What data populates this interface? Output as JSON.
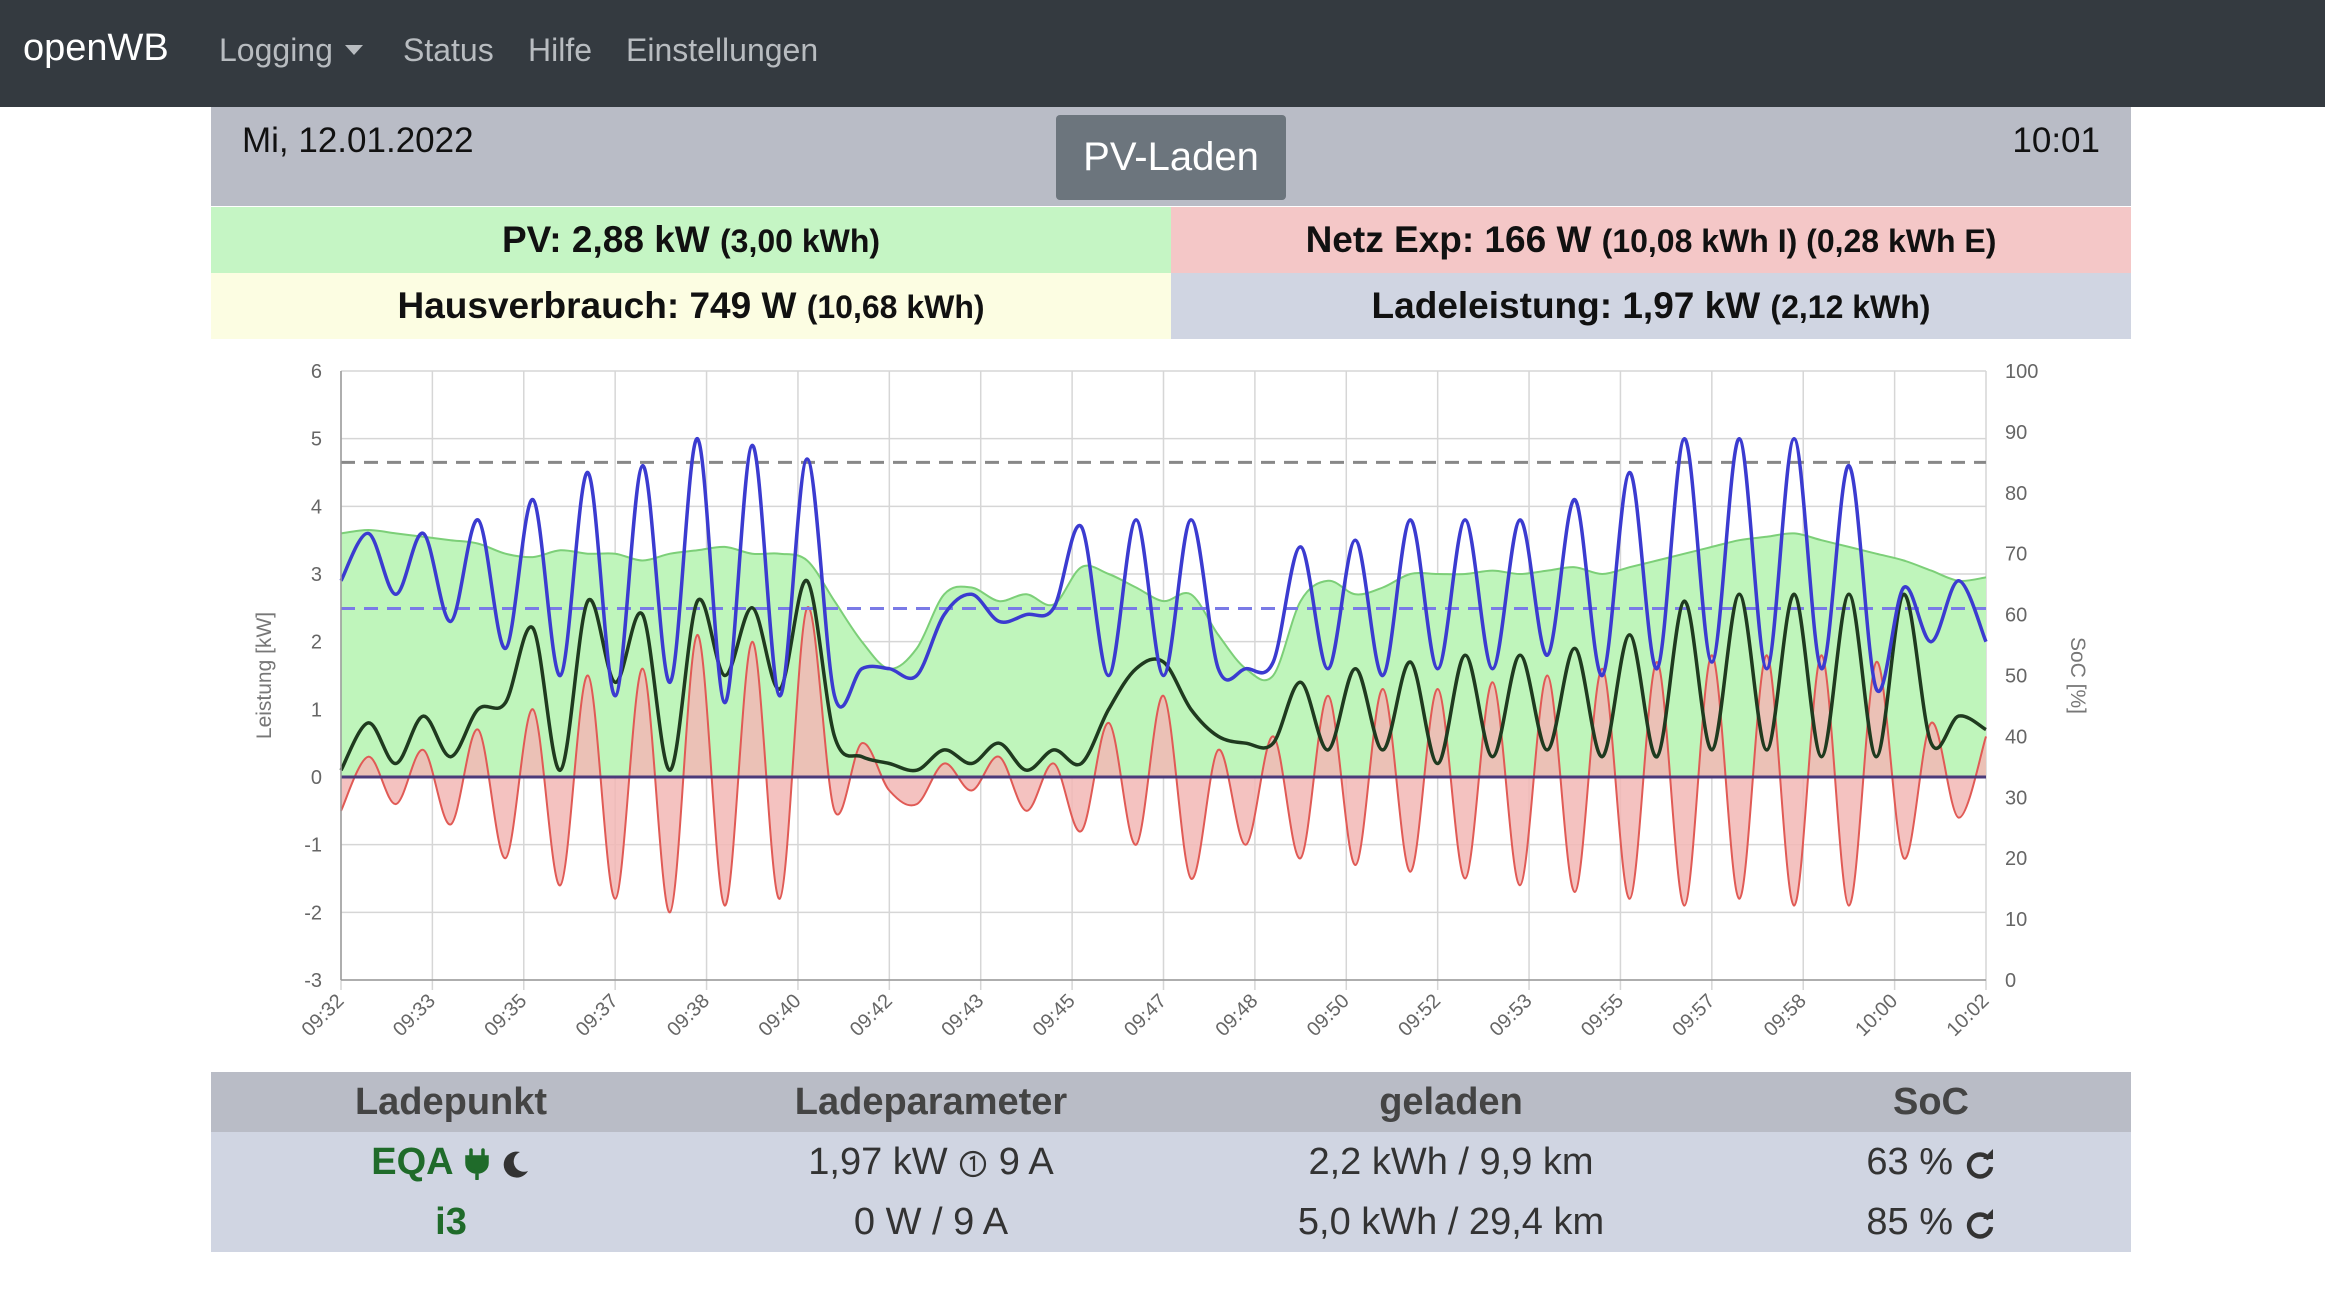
{
  "nav": {
    "brand": "openWB",
    "items": [
      {
        "label": "Logging",
        "dropdown": true
      },
      {
        "label": "Status"
      },
      {
        "label": "Hilfe"
      },
      {
        "label": "Einstellungen"
      }
    ]
  },
  "header": {
    "date": "Mi, 12.01.2022",
    "time": "10:01",
    "mode": "PV-Laden"
  },
  "summary": {
    "pv_label": "PV: 2,88 kW",
    "pv_energy": "(3,00 kWh)",
    "netz_label": "Netz Exp: 166 W",
    "netz_energy": "(10,08 kWh I) (0,28 kWh E)",
    "haus_label": "Hausverbrauch: 749 W",
    "haus_energy": "(10,68 kWh)",
    "lade_label": "Ladeleistung: 1,97 kW",
    "lade_energy": "(2,12 kWh)"
  },
  "chart_data": {
    "type": "line",
    "ylabel": "Leistung [kW]",
    "y2label": "SoC [%]",
    "ylim": [
      -3,
      6
    ],
    "y2lim": [
      0,
      100
    ],
    "yticks": [
      "6",
      "5",
      "4",
      "3",
      "2",
      "1",
      "0",
      "-1",
      "-2",
      "-3"
    ],
    "y2ticks": [
      "100",
      "90",
      "80",
      "70",
      "60",
      "50",
      "40",
      "30",
      "20",
      "10",
      "0"
    ],
    "xlim": [
      0,
      30
    ],
    "xticks": [
      "09:32",
      "09:33",
      "09:35",
      "09:37",
      "09:38",
      "09:40",
      "09:42",
      "09:43",
      "09:45",
      "09:47",
      "09:48",
      "09:50",
      "09:52",
      "09:53",
      "09:55",
      "09:57",
      "09:58",
      "10:00",
      "10:02"
    ],
    "grid": true,
    "colors": {
      "pv_fill": "#bff5bb",
      "pv_line": "#7ccf78",
      "grid_fill": "#f2b7b5",
      "grid_line": "#e05a55",
      "house": "#1f3a1f",
      "charge": "#3b3bd0",
      "soc1": "#7a7ae6",
      "soc2": "#888888"
    },
    "series": {
      "pv": {
        "x": [
          0,
          0.5,
          1,
          1.5,
          2,
          2.5,
          3,
          3.5,
          4,
          4.5,
          5,
          5.5,
          6,
          6.5,
          7,
          7.5,
          8,
          8.5,
          9,
          9.5,
          10,
          10.5,
          11,
          11.5,
          12,
          12.5,
          13,
          13.5,
          14,
          14.5,
          15,
          15.5,
          16,
          16.5,
          17,
          17.5,
          18,
          18.5,
          19,
          19.5,
          20,
          20.5,
          21,
          21.5,
          22,
          22.5,
          23,
          23.5,
          24,
          24.5,
          25,
          25.5,
          26,
          26.5,
          27,
          27.5,
          28,
          28.5,
          29,
          29.5,
          30
        ],
        "y": [
          3.6,
          3.65,
          3.6,
          3.55,
          3.5,
          3.45,
          3.3,
          3.25,
          3.35,
          3.3,
          3.3,
          3.2,
          3.3,
          3.35,
          3.4,
          3.3,
          3.3,
          3.2,
          2.6,
          2.0,
          1.6,
          1.9,
          2.7,
          2.8,
          2.6,
          2.7,
          2.55,
          3.1,
          3.0,
          2.8,
          2.6,
          2.7,
          2.1,
          1.6,
          1.5,
          2.6,
          2.9,
          2.7,
          2.8,
          3.0,
          3.0,
          3.0,
          3.05,
          3.0,
          3.05,
          3.1,
          3.0,
          3.1,
          3.2,
          3.3,
          3.4,
          3.5,
          3.55,
          3.6,
          3.5,
          3.4,
          3.3,
          3.2,
          3.05,
          2.9,
          2.95
        ]
      },
      "grid": {
        "x": [
          0,
          0.5,
          1,
          1.5,
          2,
          2.5,
          3,
          3.5,
          4,
          4.5,
          5,
          5.5,
          6,
          6.5,
          7,
          7.5,
          8,
          8.5,
          9,
          9.5,
          10,
          10.5,
          11,
          11.5,
          12,
          12.5,
          13,
          13.5,
          14,
          14.5,
          15,
          15.5,
          16,
          16.5,
          17,
          17.5,
          18,
          18.5,
          19,
          19.5,
          20,
          20.5,
          21,
          21.5,
          22,
          22.5,
          23,
          23.5,
          24,
          24.5,
          25,
          25.5,
          26,
          26.5,
          27,
          27.5,
          28,
          28.5,
          29,
          29.5,
          30
        ],
        "y": [
          -0.5,
          0.3,
          -0.4,
          0.4,
          -0.7,
          0.7,
          -1.2,
          1.0,
          -1.6,
          1.5,
          -1.8,
          1.6,
          -2.0,
          2.1,
          -1.9,
          2.0,
          -1.8,
          2.5,
          -0.5,
          0.5,
          -0.2,
          -0.4,
          0.2,
          -0.2,
          0.3,
          -0.5,
          0.2,
          -0.8,
          0.8,
          -1.0,
          1.2,
          -1.5,
          0.4,
          -1.0,
          0.6,
          -1.2,
          1.2,
          -1.3,
          1.3,
          -1.4,
          1.3,
          -1.5,
          1.4,
          -1.6,
          1.5,
          -1.7,
          1.6,
          -1.8,
          1.7,
          -1.9,
          1.8,
          -1.8,
          1.8,
          -1.9,
          1.8,
          -1.9,
          1.7,
          -1.2,
          0.8,
          -0.6,
          0.6
        ]
      },
      "house": {
        "x": [
          0,
          0.5,
          1,
          1.5,
          2,
          2.5,
          3,
          3.5,
          4,
          4.5,
          5,
          5.5,
          6,
          6.5,
          7,
          7.5,
          8,
          8.5,
          9,
          9.5,
          10,
          10.5,
          11,
          11.5,
          12,
          12.5,
          13,
          13.5,
          14,
          14.5,
          15,
          15.5,
          16,
          16.5,
          17,
          17.5,
          18,
          18.5,
          19,
          19.5,
          20,
          20.5,
          21,
          21.5,
          22,
          22.5,
          23,
          23.5,
          24,
          24.5,
          25,
          25.5,
          26,
          26.5,
          27,
          27.5,
          28,
          28.5,
          29,
          29.5,
          30
        ],
        "y": [
          0.1,
          0.8,
          0.2,
          0.9,
          0.3,
          1.0,
          1.1,
          2.2,
          0.1,
          2.6,
          1.4,
          2.4,
          0.1,
          2.6,
          1.5,
          2.5,
          1.3,
          2.9,
          0.6,
          0.3,
          0.2,
          0.1,
          0.4,
          0.2,
          0.5,
          0.1,
          0.4,
          0.2,
          1.0,
          1.6,
          1.7,
          1.0,
          0.6,
          0.5,
          0.5,
          1.4,
          0.4,
          1.6,
          0.4,
          1.7,
          0.2,
          1.8,
          0.3,
          1.8,
          0.4,
          1.9,
          0.3,
          2.1,
          0.3,
          2.6,
          0.4,
          2.7,
          0.4,
          2.7,
          0.3,
          2.7,
          0.3,
          2.7,
          0.5,
          0.9,
          0.7
        ]
      },
      "charge": {
        "x": [
          0,
          0.5,
          1,
          1.5,
          2,
          2.5,
          3,
          3.5,
          4,
          4.5,
          5,
          5.5,
          6,
          6.5,
          7,
          7.5,
          8,
          8.5,
          9,
          9.5,
          10,
          10.5,
          11,
          11.5,
          12,
          12.5,
          13,
          13.5,
          14,
          14.5,
          15,
          15.5,
          16,
          16.5,
          17,
          17.5,
          18,
          18.5,
          19,
          19.5,
          20,
          20.5,
          21,
          21.5,
          22,
          22.5,
          23,
          23.5,
          24,
          24.5,
          25,
          25.5,
          26,
          26.5,
          27,
          27.5,
          28,
          28.5,
          29,
          29.5,
          30
        ],
        "y": [
          2.9,
          3.6,
          2.7,
          3.6,
          2.3,
          3.8,
          1.9,
          4.1,
          1.5,
          4.5,
          1.2,
          4.6,
          1.4,
          5.0,
          1.1,
          4.9,
          1.2,
          4.7,
          1.2,
          1.6,
          1.6,
          1.5,
          2.4,
          2.7,
          2.3,
          2.4,
          2.5,
          3.7,
          1.5,
          3.8,
          1.5,
          3.8,
          1.6,
          1.6,
          1.7,
          3.4,
          1.6,
          3.5,
          1.5,
          3.8,
          1.6,
          3.8,
          1.6,
          3.8,
          1.8,
          4.1,
          1.5,
          4.5,
          1.6,
          5.0,
          1.7,
          5.0,
          1.6,
          5.0,
          1.6,
          4.6,
          1.3,
          2.8,
          2.0,
          2.9,
          2.0
        ]
      },
      "soc_line1_pct": 61,
      "soc_line2_pct": 85
    }
  },
  "table": {
    "headers": [
      "Ladepunkt",
      "Ladeparameter",
      "geladen",
      "SoC"
    ],
    "rows": [
      {
        "name": "EQA",
        "param": "1,97 kW",
        "param2": "9 A",
        "charged": "2,2 kWh / 9,9 km",
        "soc": "63 %"
      },
      {
        "name": "i3",
        "param": "0 W / 9 A",
        "charged": "5,0 kWh / 29,4 km",
        "soc": "85 %"
      }
    ]
  }
}
